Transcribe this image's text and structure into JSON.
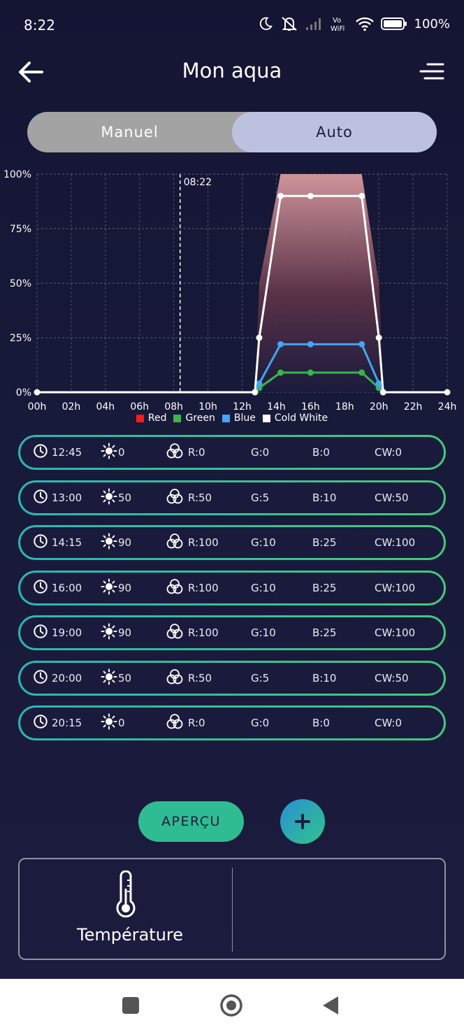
{
  "status_bar": {
    "time": "8:22",
    "battery": "100%",
    "icons": [
      "moon-icon",
      "mute-icon",
      "signal-icon",
      "vowifi-icon",
      "wifi-icon",
      "battery-icon"
    ],
    "vowifi_top": "Vo",
    "vowifi_bottom": "WiFi"
  },
  "header": {
    "title": "Mon aqua",
    "back_icon": "arrow-left-icon",
    "menu_icon": "menu-icon"
  },
  "mode": {
    "manual_label": "Manuel",
    "auto_label": "Auto",
    "selected": "Auto"
  },
  "chart_data": {
    "type": "area",
    "x_ticks": [
      "00h",
      "02h",
      "04h",
      "06h",
      "08h",
      "10h",
      "12h",
      "14h",
      "16h",
      "18h",
      "20h",
      "22h",
      "24h"
    ],
    "y_ticks": [
      "0%",
      "25%",
      "50%",
      "75%",
      "100%"
    ],
    "xlim": [
      0,
      24
    ],
    "ylim": [
      0,
      100
    ],
    "grid": true,
    "current_time_marker": {
      "x": 8.37,
      "label": "08:22"
    },
    "legend": [
      {
        "name": "Red",
        "color": "#ff1a1a"
      },
      {
        "name": "Green",
        "color": "#3ab54a"
      },
      {
        "name": "Blue",
        "color": "#42a5f5"
      },
      {
        "name": "Cold White",
        "color": "#ffffff"
      }
    ],
    "series": [
      {
        "name": "Red",
        "color": "#ff1a1a",
        "x": [
          0,
          12.75,
          13,
          14.25,
          16,
          19,
          20,
          20.25,
          24
        ],
        "values": [
          0,
          0,
          50,
          100,
          100,
          100,
          50,
          0,
          0
        ]
      },
      {
        "name": "Green",
        "color": "#3ab54a",
        "x": [
          12.75,
          13,
          14.25,
          16,
          19,
          20,
          20.25
        ],
        "values": [
          0,
          2,
          9,
          9,
          9,
          2,
          0
        ]
      },
      {
        "name": "Blue",
        "color": "#42a5f5",
        "x": [
          12.75,
          13,
          14.25,
          16,
          19,
          20,
          20.25
        ],
        "values": [
          0,
          4,
          22,
          22,
          22,
          4,
          0
        ]
      },
      {
        "name": "Cold White",
        "color": "#ffffff",
        "x": [
          0,
          12.75,
          13,
          14.25,
          16,
          19,
          20,
          20.25,
          24
        ],
        "values": [
          0,
          0,
          25,
          90,
          90,
          90,
          25,
          0,
          0
        ]
      }
    ]
  },
  "schedule": [
    {
      "time": "12:45",
      "brightness": "0",
      "r": "R:0",
      "g": "G:0",
      "b": "B:0",
      "cw": "CW:0"
    },
    {
      "time": "13:00",
      "brightness": "50",
      "r": "R:50",
      "g": "G:5",
      "b": "B:10",
      "cw": "CW:50"
    },
    {
      "time": "14:15",
      "brightness": "90",
      "r": "R:100",
      "g": "G:10",
      "b": "B:25",
      "cw": "CW:100"
    },
    {
      "time": "16:00",
      "brightness": "90",
      "r": "R:100",
      "g": "G:10",
      "b": "B:25",
      "cw": "CW:100"
    },
    {
      "time": "19:00",
      "brightness": "90",
      "r": "R:100",
      "g": "G:10",
      "b": "B:25",
      "cw": "CW:100"
    },
    {
      "time": "20:00",
      "brightness": "50",
      "r": "R:50",
      "g": "G:5",
      "b": "B:10",
      "cw": "CW:50"
    },
    {
      "time": "20:15",
      "brightness": "0",
      "r": "R:0",
      "g": "G:0",
      "b": "B:0",
      "cw": "CW:0"
    }
  ],
  "actions": {
    "apercu_label": "APERÇU",
    "add_icon": "plus-icon"
  },
  "temperature": {
    "label": "Température",
    "icon": "thermometer-icon"
  },
  "nav_bar": {
    "icons": [
      "recents-square-icon",
      "home-circle-icon",
      "back-triangle-icon"
    ]
  },
  "colors": {
    "background": "#171836",
    "accent_teal": "#2fbc92",
    "toggle_selected": "#bdc0de",
    "toggle_unselected": "#a3a3a3"
  }
}
